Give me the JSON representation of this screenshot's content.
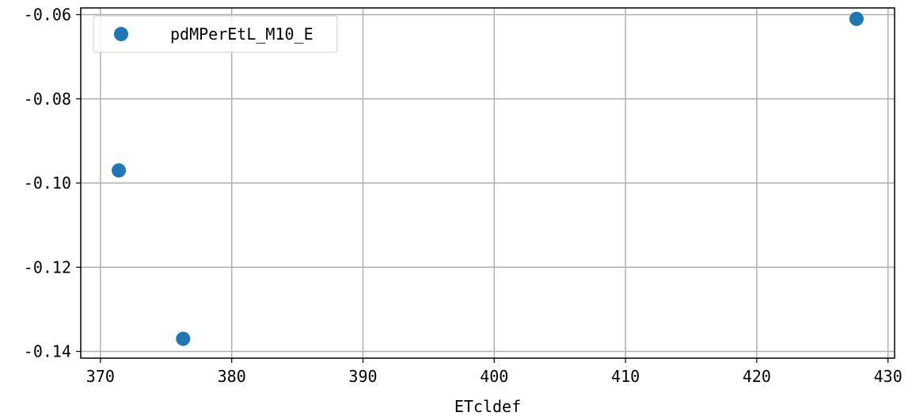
{
  "chart_data": {
    "type": "scatter",
    "title": "",
    "xlabel": "ETcldef",
    "ylabel": "",
    "xlim": [
      368.5,
      430.5
    ],
    "ylim": [
      -0.1416,
      -0.0584
    ],
    "x_ticks": [
      370,
      380,
      390,
      400,
      410,
      420,
      430
    ],
    "y_ticks": [
      -0.06,
      -0.08,
      -0.1,
      -0.12,
      -0.14
    ],
    "x_tick_labels": [
      "370",
      "380",
      "390",
      "400",
      "410",
      "420",
      "430"
    ],
    "y_tick_labels": [
      "-0.06",
      "-0.08",
      "-0.10",
      "-0.12",
      "-0.14"
    ],
    "grid": true,
    "legend": {
      "position": "top-left"
    },
    "series": [
      {
        "name": "pdMPerEtL_M10_E",
        "color": "#1f77b4",
        "points": [
          {
            "x": 371.4,
            "y": -0.097
          },
          {
            "x": 376.3,
            "y": -0.137
          },
          {
            "x": 427.6,
            "y": -0.061
          }
        ]
      }
    ]
  }
}
